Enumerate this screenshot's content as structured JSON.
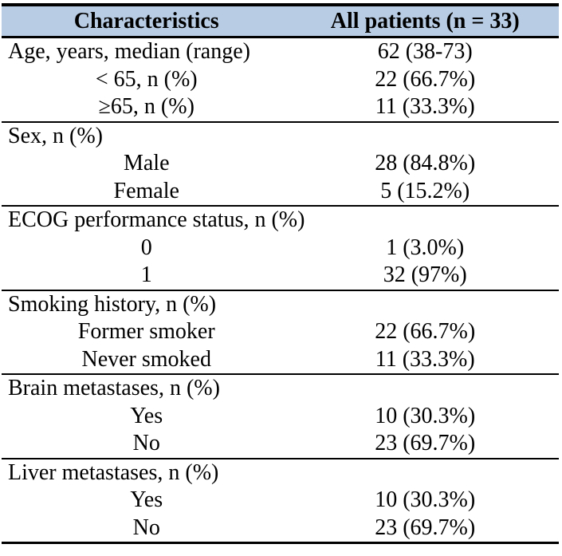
{
  "table": {
    "title_semantic": "patient-characteristics-table",
    "header": {
      "characteristics_label": "Characteristics",
      "all_patients_label": "All patients (n = 33)"
    },
    "colors": {
      "header_background": "#b8cce4",
      "border": "#000000",
      "text": "#000000",
      "page_background": "#ffffff"
    },
    "sections": [
      {
        "rows": [
          {
            "label": "Age, years, median (range)",
            "value": "62 (38-73)",
            "indent": false
          },
          {
            "label": "< 65, n (%)",
            "value": "22 (66.7%)",
            "indent": true
          },
          {
            "label": "≥65, n (%)",
            "value": "11 (33.3%)",
            "indent": true
          }
        ]
      },
      {
        "rows": [
          {
            "label": "Sex, n (%)",
            "value": "",
            "indent": false
          },
          {
            "label": "Male",
            "value": "28 (84.8%)",
            "indent": true
          },
          {
            "label": "Female",
            "value": "5 (15.2%)",
            "indent": true
          }
        ]
      },
      {
        "rows": [
          {
            "label": "ECOG performance status, n (%)",
            "value": "",
            "indent": false
          },
          {
            "label": "0",
            "value": "1 (3.0%)",
            "indent": true
          },
          {
            "label": "1",
            "value": "32 (97%)",
            "indent": true
          }
        ]
      },
      {
        "rows": [
          {
            "label": "Smoking history, n (%)",
            "value": "",
            "indent": false
          },
          {
            "label": "Former smoker",
            "value": "22 (66.7%)",
            "indent": true
          },
          {
            "label": "Never smoked",
            "value": "11 (33.3%)",
            "indent": true
          }
        ]
      },
      {
        "rows": [
          {
            "label": "Brain metastases, n (%)",
            "value": "",
            "indent": false
          },
          {
            "label": "Yes",
            "value": "10 (30.3%)",
            "indent": true
          },
          {
            "label": "No",
            "value": "23 (69.7%)",
            "indent": true
          }
        ]
      },
      {
        "rows": [
          {
            "label": "Liver metastases, n (%)",
            "value": "",
            "indent": false
          },
          {
            "label": "Yes",
            "value": "10 (30.3%)",
            "indent": true
          },
          {
            "label": "No",
            "value": "23 (69.7%)",
            "indent": true
          }
        ]
      }
    ]
  }
}
